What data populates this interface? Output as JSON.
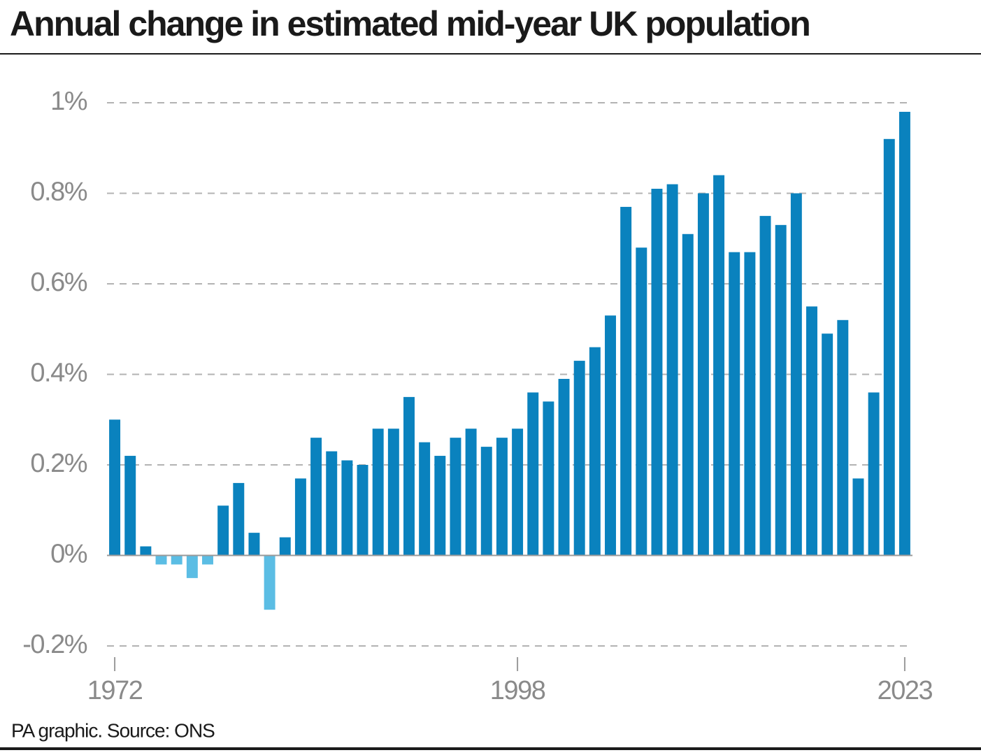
{
  "chart_data": {
    "type": "bar",
    "title": "Annual change in estimated mid-year UK population",
    "source": "PA graphic. Source: ONS",
    "x": [
      1972,
      1973,
      1974,
      1975,
      1976,
      1977,
      1978,
      1979,
      1980,
      1981,
      1982,
      1983,
      1984,
      1985,
      1986,
      1987,
      1988,
      1989,
      1990,
      1991,
      1992,
      1993,
      1994,
      1995,
      1996,
      1997,
      1998,
      1999,
      2000,
      2001,
      2002,
      2003,
      2004,
      2005,
      2006,
      2007,
      2008,
      2009,
      2010,
      2011,
      2012,
      2013,
      2014,
      2015,
      2016,
      2017,
      2018,
      2019,
      2020,
      2021,
      2022,
      2023
    ],
    "values": [
      0.3,
      0.22,
      0.02,
      -0.02,
      -0.02,
      -0.05,
      -0.02,
      0.11,
      0.16,
      0.05,
      -0.12,
      0.04,
      0.17,
      0.26,
      0.23,
      0.21,
      0.2,
      0.28,
      0.28,
      0.35,
      0.25,
      0.22,
      0.26,
      0.28,
      0.24,
      0.26,
      0.28,
      0.36,
      0.34,
      0.39,
      0.43,
      0.46,
      0.53,
      0.77,
      0.68,
      0.81,
      0.82,
      0.71,
      0.8,
      0.84,
      0.67,
      0.67,
      0.75,
      0.73,
      0.8,
      0.55,
      0.49,
      0.52,
      0.17,
      0.36,
      0.92,
      0.98
    ],
    "color": "#0a82be",
    "negative_color": "#5bbde4",
    "xlim": [
      1971.5,
      2023.5
    ],
    "xticks": [
      1972,
      1998,
      2023
    ],
    "ylim": [
      -0.2,
      1
    ],
    "yticks": [
      {
        "value": -0.2,
        "label": "-0.2%"
      },
      {
        "value": 0,
        "label": "0%"
      },
      {
        "value": 0.2,
        "label": "0.2%"
      },
      {
        "value": 0.4,
        "label": "0.4%"
      },
      {
        "value": 0.6,
        "label": "0.6%"
      },
      {
        "value": 0.8,
        "label": "0.8%"
      },
      {
        "value": 1,
        "label": "1%"
      }
    ],
    "grid": true
  }
}
